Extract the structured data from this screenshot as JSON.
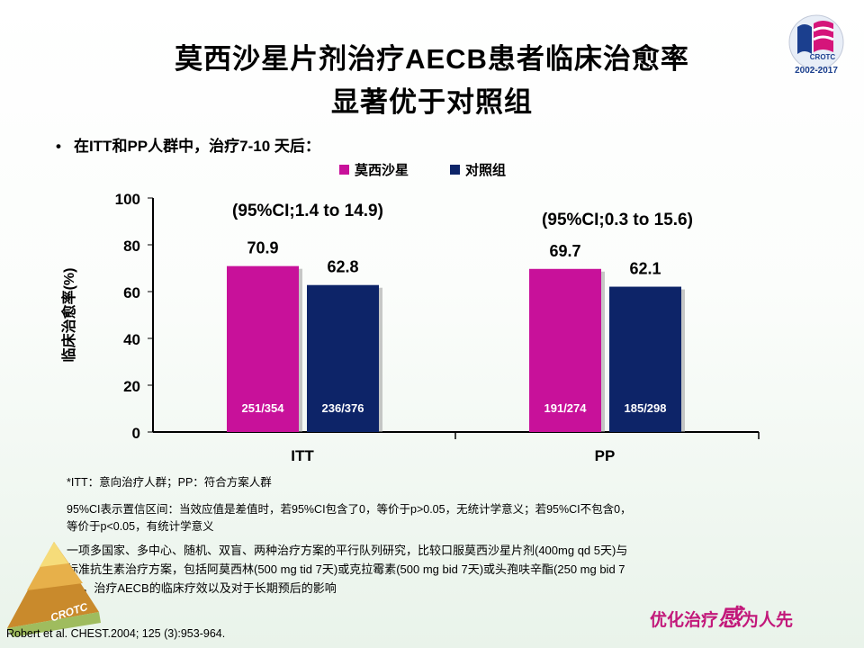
{
  "slide": {
    "title_line1": "莫西沙星片剂治疗AECB患者临床治愈率",
    "title_line2": "显著优于对照组",
    "bullet": "在ITT和PP人群中，治疗7-10 天后："
  },
  "colors": {
    "moxifloxacin": "#c8119a",
    "control": "#0d2468"
  },
  "chart_data": {
    "type": "bar",
    "categories": [
      "ITT",
      "PP"
    ],
    "series": [
      {
        "name": "莫西沙星",
        "values": [
          70.9,
          69.7
        ],
        "counts": [
          "251/354",
          "191/274"
        ]
      },
      {
        "name": "对照组",
        "values": [
          62.8,
          62.1
        ],
        "counts": [
          "236/376",
          "185/298"
        ]
      }
    ],
    "ylabel": "临床治愈率(%)",
    "ylim": [
      0,
      100
    ],
    "yticks": [
      "0",
      "20",
      "40",
      "60",
      "80",
      "100"
    ],
    "annotations": [
      "(95%CI;1.4 to 14.9)",
      "(95%CI;0.3 to 15.6)"
    ],
    "legend_position": "top",
    "grid": false
  },
  "notes": {
    "abbrev": "*ITT：意向治疗人群；PP：符合方案人群",
    "ci_line1": "95%CI表示置信区间：当效应值是差值时，若95%CI包含了0，等价于p>0.05，无统计学意义；若95%CI不包含0，",
    "ci_line2": "等价于p<0.05，有统计学意义",
    "study_line1": "一项多国家、多中心、随机、双盲、两种治疗方案的平行队列研究，比较口服莫西沙星片剂(400mg qd 5天)与",
    "study_line2": "标准抗生素治疗方案，包括阿莫西林(500 mg tid 7天)或克拉霉素(500 mg bid 7天)或头孢呋辛酯(250 mg bid 7",
    "study_line3": "天)，治疗AECB的临床疗效以及对于长期预后的影响"
  },
  "reference": "Robert   et al. CHEST.2004; 125 (3):953-964.",
  "logo": {
    "text": "CROTC",
    "years": "2002-2017"
  },
  "pyramid_logo_text": "CROTC",
  "slogan": {
    "part1": "优化治疗",
    "part2": "感",
    "part3": "为人先"
  }
}
